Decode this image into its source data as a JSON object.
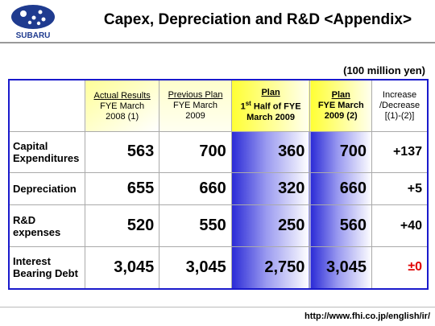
{
  "header": {
    "logo_text": "SUBARU",
    "title": "Capex, Depreciation and R&D <Appendix>"
  },
  "unit": "(100 million yen)",
  "table": {
    "columns": [
      {
        "title": "Actual Results",
        "lines": [
          "FYE March",
          "2008 (1)"
        ]
      },
      {
        "title": "Previous Plan",
        "lines": [
          "FYE March",
          "2009"
        ]
      },
      {
        "title": "Plan",
        "lines": [
          {
            "base": "1",
            "sup": "st",
            "text": " Half of FYE"
          },
          "March 2009"
        ]
      },
      {
        "title": "Plan",
        "lines": [
          "FYE March",
          "2009 (2)"
        ]
      },
      {
        "lines": [
          "Increase",
          "/Decrease",
          "[(1)-(2)]"
        ]
      }
    ],
    "rows": [
      {
        "label": [
          "Capital",
          "Expenditures"
        ],
        "cells": [
          "563",
          "700",
          "360",
          "700",
          "+137"
        ]
      },
      {
        "label": [
          "Depreciation"
        ],
        "cells": [
          "655",
          "660",
          "320",
          "660",
          "+5"
        ]
      },
      {
        "label": [
          "R&D",
          "expenses"
        ],
        "cells": [
          "520",
          "550",
          "250",
          "560",
          "+40"
        ]
      },
      {
        "label": [
          "Interest",
          "Bearing Debt"
        ],
        "cells": [
          "3,045",
          "3,045",
          "2,750",
          "3,045",
          "±0"
        ]
      }
    ]
  },
  "footer": {
    "url": "http://www.fhi.co.jp/english/ir/"
  }
}
